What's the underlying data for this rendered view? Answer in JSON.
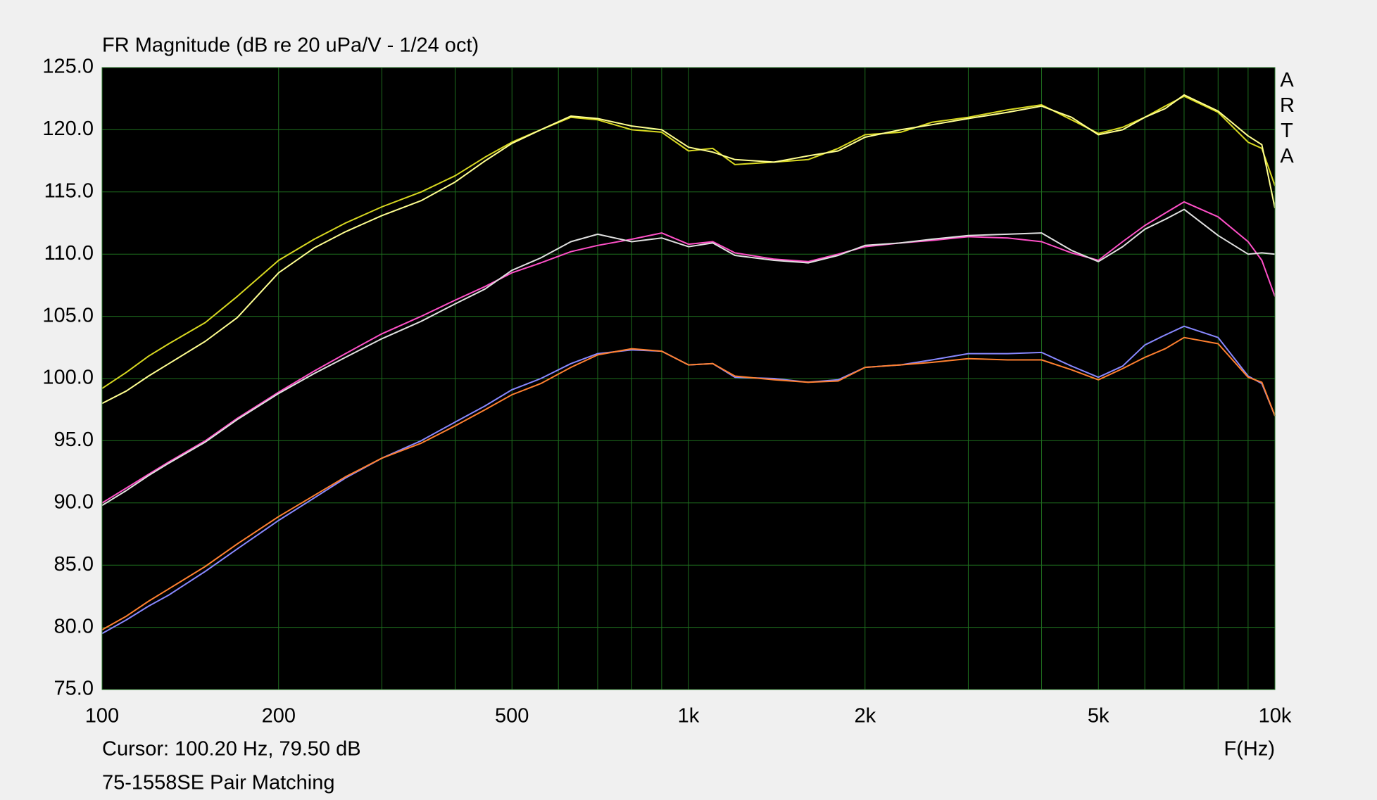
{
  "chart_data": {
    "type": "line",
    "title": "FR Magnitude (dB re 20 uPa/V - 1/24 oct)",
    "brand": "ARTA",
    "cursor": "Cursor: 100.20 Hz, 79.50 dB",
    "xlabel": "F(Hz)",
    "caption": "75-1558SE Pair Matching",
    "xscale": "log",
    "grid": true,
    "background": "#000000",
    "grid_color": "#1e6e1e",
    "xlim": [
      100,
      10000
    ],
    "ylim": [
      75,
      125
    ],
    "xticks": [
      100,
      200,
      500,
      {
        "value": 1000,
        "label": "1k"
      },
      {
        "value": 2000,
        "label": "2k"
      },
      {
        "value": 5000,
        "label": "5k"
      },
      {
        "value": 10000,
        "label": "10k"
      }
    ],
    "xminorticks": [
      300,
      400,
      600,
      700,
      800,
      900,
      3000,
      4000,
      6000,
      7000,
      8000,
      9000
    ],
    "yticks": [
      {
        "value": 75,
        "label": "75.0"
      },
      {
        "value": 80,
        "label": "80.0"
      },
      {
        "value": 85,
        "label": "85.0"
      },
      {
        "value": 90,
        "label": "90.0"
      },
      {
        "value": 95,
        "label": "95.0"
      },
      {
        "value": 100,
        "label": "100.0"
      },
      {
        "value": 105,
        "label": "105.0"
      },
      {
        "value": 110,
        "label": "110.0"
      },
      {
        "value": 115,
        "label": "115.0"
      },
      {
        "value": 120,
        "label": "120.0"
      },
      {
        "value": 125,
        "label": "125.0"
      }
    ],
    "x": [
      100,
      110,
      120,
      130,
      150,
      170,
      200,
      230,
      260,
      300,
      350,
      400,
      450,
      500,
      560,
      630,
      700,
      800,
      900,
      1000,
      1100,
      1200,
      1400,
      1600,
      1800,
      2000,
      2300,
      2600,
      3000,
      3500,
      4000,
      4500,
      5000,
      5500,
      6000,
      6500,
      7000,
      8000,
      9000,
      9500,
      10000
    ],
    "series": [
      {
        "color": "#d8d820",
        "values": [
          99.2,
          100.5,
          101.8,
          102.8,
          104.5,
          106.6,
          109.5,
          111.2,
          112.5,
          113.8,
          115,
          116.3,
          117.8,
          119,
          120,
          121,
          120.8,
          120,
          119.8,
          118.3,
          118.5,
          117.2,
          117.4,
          117.6,
          118.5,
          119.6,
          119.8,
          120.6,
          121,
          121.6,
          122,
          120.8,
          119.7,
          120.2,
          121,
          121.9,
          122.7,
          121.4,
          119,
          118.5,
          115.5
        ]
      },
      {
        "color": "#ffff90",
        "values": [
          98,
          99,
          100.2,
          101.2,
          103,
          104.9,
          108.5,
          110.5,
          111.8,
          113.1,
          114.3,
          115.8,
          117.5,
          118.9,
          120,
          121.1,
          120.9,
          120.3,
          120,
          118.6,
          118.2,
          117.6,
          117.4,
          117.9,
          118.3,
          119.4,
          120,
          120.4,
          120.9,
          121.4,
          121.9,
          121,
          119.6,
          120,
          121,
          121.7,
          122.8,
          121.5,
          119.5,
          118.8,
          113.7
        ]
      },
      {
        "color": "#ff50c8",
        "values": [
          90,
          91.2,
          92.3,
          93.3,
          95,
          96.8,
          98.9,
          100.6,
          102,
          103.6,
          105,
          106.3,
          107.4,
          108.5,
          109.3,
          110.2,
          110.7,
          111.2,
          111.7,
          110.8,
          111,
          110.1,
          109.6,
          109.4,
          110,
          110.6,
          110.9,
          111.1,
          111.4,
          111.3,
          111,
          110.1,
          109.5,
          111,
          112.3,
          113.3,
          114.2,
          113,
          111,
          109.5,
          106.6
        ]
      },
      {
        "color": "#e0e0e0",
        "values": [
          89.8,
          91,
          92.2,
          93.2,
          94.9,
          96.7,
          98.8,
          100.4,
          101.7,
          103.2,
          104.6,
          106,
          107.2,
          108.7,
          109.7,
          111,
          111.6,
          111,
          111.3,
          110.6,
          110.9,
          109.9,
          109.5,
          109.3,
          109.9,
          110.7,
          110.9,
          111.2,
          111.5,
          111.6,
          111.7,
          110.3,
          109.4,
          110.6,
          112,
          112.8,
          113.6,
          111.5,
          110,
          110.1,
          110
        ]
      },
      {
        "color": "#8888ff",
        "values": [
          79.5,
          80.6,
          81.7,
          82.6,
          84.5,
          86.3,
          88.6,
          90.4,
          92,
          93.6,
          95,
          96.5,
          97.8,
          99.1,
          100,
          101.2,
          102,
          102.3,
          102.2,
          101.1,
          101.2,
          100.1,
          100,
          99.7,
          99.9,
          100.9,
          101.1,
          101.5,
          102,
          102,
          102.1,
          101,
          100.1,
          101,
          102.7,
          103.5,
          104.2,
          103.3,
          100.2,
          99.6,
          97
        ]
      },
      {
        "color": "#ff8030",
        "values": [
          79.8,
          80.9,
          82.1,
          83.1,
          84.9,
          86.7,
          88.9,
          90.6,
          92.1,
          93.6,
          94.8,
          96.2,
          97.5,
          98.7,
          99.6,
          100.9,
          101.9,
          102.4,
          102.2,
          101.1,
          101.2,
          100.2,
          99.9,
          99.7,
          99.8,
          100.9,
          101.1,
          101.3,
          101.6,
          101.5,
          101.5,
          100.7,
          99.9,
          100.8,
          101.7,
          102.4,
          103.3,
          102.8,
          100.1,
          99.7,
          97
        ]
      }
    ]
  }
}
